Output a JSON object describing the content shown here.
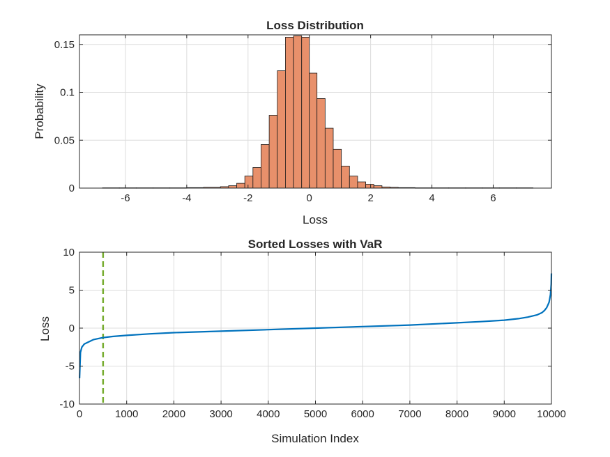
{
  "chart_data": [
    {
      "type": "bar",
      "title": "Loss Distribution",
      "xlabel": "Loss",
      "ylabel": "Probability",
      "xlim": [
        -7.5,
        7.9
      ],
      "ylim": [
        0,
        0.16
      ],
      "xticks": [
        -6,
        -4,
        -2,
        0,
        2,
        4,
        6
      ],
      "xtick_labels": [
        "-6",
        "-4",
        "-2",
        "0",
        "2",
        "4",
        "6"
      ],
      "yticks": [
        0,
        0.05,
        0.1,
        0.15
      ],
      "ytick_labels": [
        "0",
        "0.05",
        "0.1",
        "0.15"
      ],
      "grid": true,
      "bar_color": "#e8906b",
      "bin_edges": [
        -6.75,
        -6.2,
        -5.65,
        -5.1,
        -4.55,
        -4.0,
        -3.45,
        -2.9,
        -2.635,
        -2.37,
        -2.105,
        -1.84,
        -1.575,
        -1.31,
        -1.045,
        -0.78,
        -0.515,
        -0.25,
        0.0,
        0.25,
        0.515,
        0.78,
        1.045,
        1.31,
        1.575,
        1.84,
        2.105,
        2.37,
        2.635,
        2.9,
        3.45,
        4.0,
        4.55,
        5.1,
        5.65,
        6.2,
        6.75,
        7.3
      ],
      "values": [
        0.0003,
        0.0003,
        0.0003,
        0.0003,
        0.0003,
        0.0005,
        0.0008,
        0.0015,
        0.0025,
        0.005,
        0.0125,
        0.0215,
        0.0455,
        0.076,
        0.1225,
        0.1575,
        0.159,
        0.1575,
        0.12,
        0.0935,
        0.0625,
        0.0405,
        0.023,
        0.0125,
        0.0065,
        0.004,
        0.0025,
        0.0012,
        0.0008,
        0.0005,
        0.0003,
        0.0003,
        0.0003,
        0.0003,
        0.0003,
        0.0003,
        0.0003
      ]
    },
    {
      "type": "line",
      "title": "Sorted Losses with VaR",
      "xlabel": "Simulation Index",
      "ylabel": "Loss",
      "xlim": [
        0,
        10000
      ],
      "ylim": [
        -10,
        10
      ],
      "xticks": [
        0,
        1000,
        2000,
        3000,
        4000,
        5000,
        6000,
        7000,
        8000,
        9000,
        10000
      ],
      "xtick_labels": [
        "0",
        "1000",
        "2000",
        "3000",
        "4000",
        "5000",
        "6000",
        "7000",
        "8000",
        "9000",
        "10000"
      ],
      "yticks": [
        -10,
        -5,
        0,
        5,
        10
      ],
      "ytick_labels": [
        "-10",
        "-5",
        "0",
        "5",
        "10"
      ],
      "grid": true,
      "series": [
        {
          "color": "#0072bd",
          "x": [
            1,
            20,
            50,
            100,
            200,
            300,
            500,
            700,
            1000,
            1500,
            2000,
            3000,
            4000,
            5000,
            6000,
            7000,
            8000,
            8500,
            9000,
            9300,
            9500,
            9700,
            9800,
            9850,
            9900,
            9950,
            9980,
            9995,
            10000
          ],
          "y": [
            -6.6,
            -3.2,
            -2.5,
            -2.1,
            -1.8,
            -1.5,
            -1.25,
            -1.1,
            -0.95,
            -0.75,
            -0.6,
            -0.4,
            -0.2,
            0.0,
            0.2,
            0.4,
            0.7,
            0.85,
            1.05,
            1.25,
            1.45,
            1.75,
            2.05,
            2.3,
            2.7,
            3.4,
            4.4,
            5.8,
            7.2
          ]
        }
      ],
      "var_line": {
        "x": 500,
        "color": "#77ac30",
        "style": "dashed"
      }
    }
  ]
}
